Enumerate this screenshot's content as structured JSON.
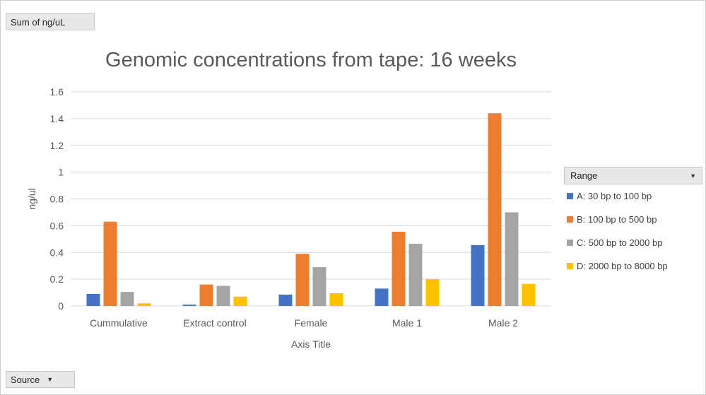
{
  "filter_button": {
    "label": "Sum of ng/uL"
  },
  "source_button": {
    "label": "Source"
  },
  "legend": {
    "header": "Range",
    "items": [
      {
        "label": "A: 30 bp to 100 bp",
        "color": "#4472c4"
      },
      {
        "label": "B: 100 bp to 500 bp",
        "color": "#ed7d31"
      },
      {
        "label": "C: 500 bp to 2000 bp",
        "color": "#a5a5a5"
      },
      {
        "label": "D: 2000 bp to 8000 bp",
        "color": "#ffc000"
      }
    ]
  },
  "chart_data": {
    "type": "bar",
    "title": "Genomic concentrations from tape: 16 weeks",
    "xlabel": "Axis Title",
    "ylabel": "ng/ul",
    "ylim": [
      0,
      1.6
    ],
    "yticks": [
      "0",
      "0.2",
      "0.4",
      "0.6",
      "0.8",
      "1",
      "1.2",
      "1.4",
      "1.6"
    ],
    "grid": true,
    "legend_position": "right",
    "categories": [
      "Cummulative",
      "Extract control",
      "Female",
      "Male 1",
      "Male 2"
    ],
    "series": [
      {
        "name": "A: 30 bp to 100 bp",
        "color": "#4472c4",
        "values": [
          0.09,
          0.01,
          0.085,
          0.13,
          0.455
        ]
      },
      {
        "name": "B: 100 bp to 500 bp",
        "color": "#ed7d31",
        "values": [
          0.63,
          0.16,
          0.39,
          0.555,
          1.44
        ]
      },
      {
        "name": "C: 500 bp to 2000 bp",
        "color": "#a5a5a5",
        "values": [
          0.105,
          0.15,
          0.29,
          0.465,
          0.7
        ]
      },
      {
        "name": "D: 2000 bp to 8000 bp",
        "color": "#ffc000",
        "values": [
          0.02,
          0.07,
          0.095,
          0.2,
          0.165
        ]
      }
    ]
  }
}
